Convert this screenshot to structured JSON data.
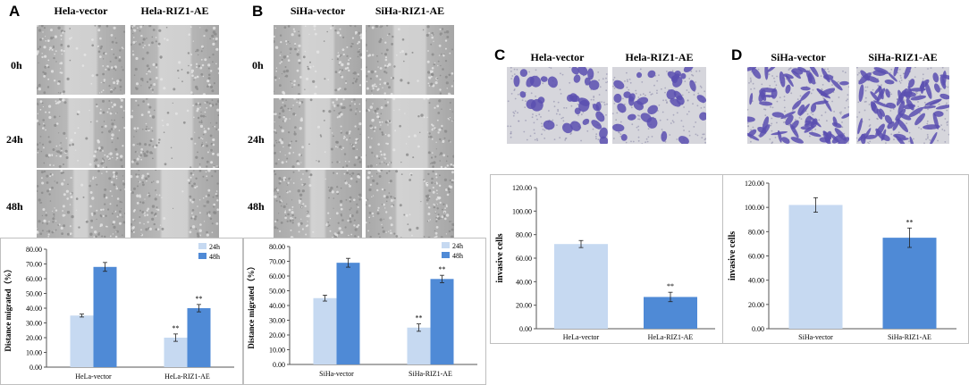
{
  "panels": {
    "A": {
      "letter": "A",
      "columns": [
        "Hela-vector",
        "Hela-RIZ1-AE"
      ],
      "rows": [
        "0h",
        "24h",
        "48h"
      ]
    },
    "B": {
      "letter": "B",
      "columns": [
        "SiHa-vector",
        "SiHa-RIZ1-AE"
      ],
      "rows": [
        "0h",
        "24h",
        "48h"
      ]
    },
    "C": {
      "letter": "C",
      "columns": [
        "Hela-vector",
        "Hela-RIZ1-AE"
      ]
    },
    "D": {
      "letter": "D",
      "columns": [
        "SiHa-vector",
        "SiHa-RIZ1-AE"
      ]
    }
  },
  "colors": {
    "light": "#c6d9f1",
    "dark": "#4f8ad6",
    "stain": "#5a4fb0",
    "wound": "#9a9a9a"
  },
  "chart_data": [
    {
      "id": "A",
      "type": "bar",
      "categories": [
        "HeLa-vector",
        "HeLa-RIZ1-AE"
      ],
      "series": [
        {
          "name": "24h",
          "values": [
            35,
            20
          ],
          "errors": [
            1,
            2.5
          ]
        },
        {
          "name": "48h",
          "values": [
            68,
            40
          ],
          "errors": [
            3,
            2.5
          ]
        }
      ],
      "significance": [
        "",
        "**"
      ],
      "ylabel": "Distance migrated（%）",
      "ylim": [
        0,
        80
      ],
      "yticks": [
        "0.00",
        "10.00",
        "20.00",
        "30.00",
        "40.00",
        "50.00",
        "60.00",
        "70.00",
        "80.00"
      ],
      "legend": "top-right"
    },
    {
      "id": "B",
      "type": "bar",
      "categories": [
        "SiHa-vector",
        "SiHa-RIZ1-AE"
      ],
      "series": [
        {
          "name": "24h",
          "values": [
            45,
            25
          ],
          "errors": [
            2,
            2.5
          ]
        },
        {
          "name": "48h",
          "values": [
            69,
            58
          ],
          "errors": [
            3,
            2.5
          ]
        }
      ],
      "significance": [
        "",
        "**"
      ],
      "ylabel": "Distance migrated（%）",
      "ylim": [
        0,
        80
      ],
      "yticks": [
        "0.00",
        "10.00",
        "20.00",
        "30.00",
        "40.00",
        "50.00",
        "60.00",
        "70.00",
        "80.00"
      ],
      "legend": "top-right"
    },
    {
      "id": "C",
      "type": "bar",
      "categories": [
        "HeLa-vector",
        "HeLa-RIZ1-AE"
      ],
      "values": [
        72,
        27
      ],
      "errors": [
        3,
        4
      ],
      "significance": [
        "",
        "**"
      ],
      "ylabel": "invasive cells",
      "ylim": [
        0,
        120
      ],
      "yticks": [
        "0.00",
        "20.00",
        "40.00",
        "60.00",
        "80.00",
        "100.00",
        "120.00"
      ]
    },
    {
      "id": "D",
      "type": "bar",
      "categories": [
        "SiHa-vector",
        "SiHa-RIZ1-AE"
      ],
      "values": [
        102,
        75
      ],
      "errors": [
        6,
        8
      ],
      "significance": [
        "",
        "**"
      ],
      "ylabel": "invasive cells",
      "ylim": [
        0,
        120
      ],
      "yticks": [
        "0.00",
        "20.00",
        "40.00",
        "60.00",
        "80.00",
        "100.00",
        "120.00"
      ]
    }
  ]
}
